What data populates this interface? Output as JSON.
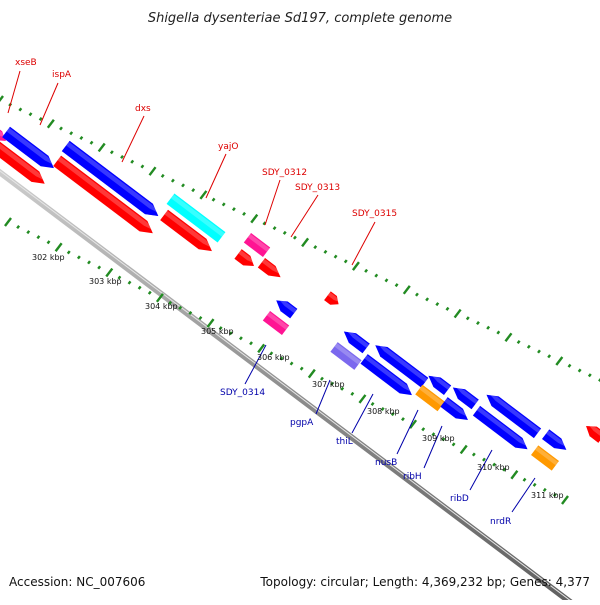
{
  "title": "Shigella dysenteriae Sd197, complete genome",
  "footer": {
    "accession": "Accession: NC_007606",
    "summary": "Topology: circular; Length: 4,369,232 bp; Genes: 4,377"
  },
  "colors": {
    "red": "#ff0000",
    "blue": "#0000ff",
    "cyan": "#00ffff",
    "magenta": "#ff1493",
    "orange": "#ff9900",
    "lavender": "#7b68ee",
    "tick": "#228b22",
    "label_top": "#dd0000",
    "label_bottom": "#0000aa",
    "backbone": "#888888"
  },
  "scale_labels": [
    "302 kbp",
    "303 kbp",
    "304 kbp",
    "305 kbp",
    "306 kbp",
    "307 kbp",
    "308 kbp",
    "309 kbp",
    "310 kbp",
    "311 kbp"
  ],
  "gene_labels_top": [
    "xseB",
    "ispA",
    "dxs",
    "yajO",
    "SDY_0312",
    "SDY_0313",
    "SDY_0315"
  ],
  "gene_labels_bottom": [
    "SDY_0314",
    "pgpA",
    "thiL",
    "nusB",
    "ribH",
    "ribD",
    "nrdR"
  ]
}
